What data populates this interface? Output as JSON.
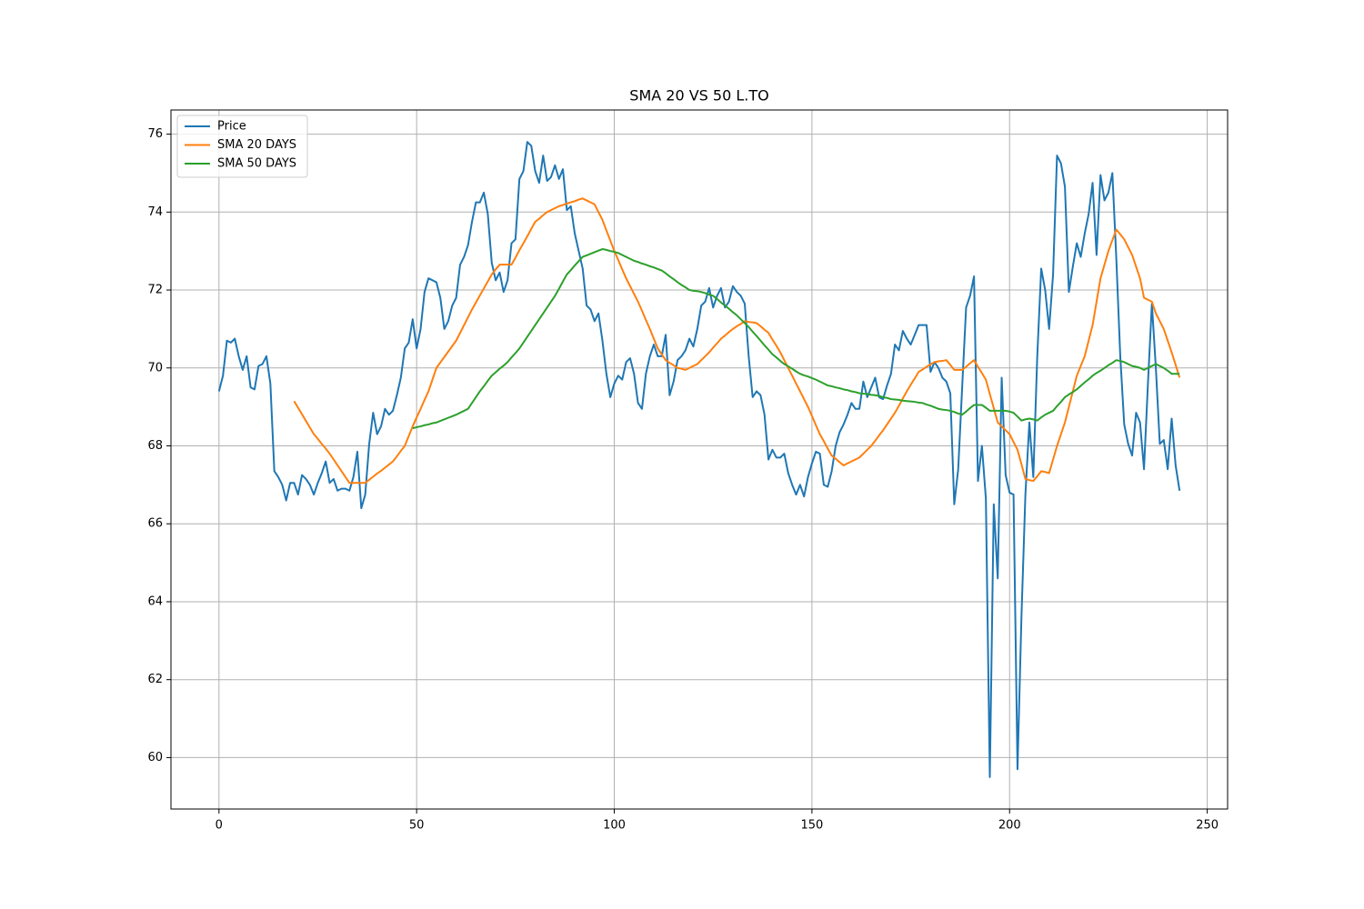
{
  "chart_data": {
    "type": "line",
    "title": "SMA 20 VS 50 L.TO",
    "x": [
      0,
      1,
      2,
      3,
      4,
      5,
      6,
      7,
      8,
      9,
      10,
      11,
      12,
      13,
      14,
      15,
      16,
      17,
      18,
      19,
      20,
      21,
      22,
      23,
      24,
      25,
      26,
      27,
      28,
      29,
      30,
      31,
      32,
      33,
      34,
      35,
      36,
      37,
      38,
      39,
      40,
      41,
      42,
      43,
      44,
      45,
      46,
      47,
      48,
      49,
      50,
      51,
      52,
      53,
      54,
      55,
      56,
      57,
      58,
      59,
      60,
      61,
      62,
      63,
      64,
      65,
      66,
      67,
      68,
      69,
      70,
      71,
      72,
      73,
      74,
      75,
      76,
      77,
      78,
      79,
      80,
      81,
      82,
      83,
      84,
      85,
      86,
      87,
      88,
      89,
      90,
      91,
      92,
      93,
      94,
      95,
      96,
      97,
      98,
      99,
      100,
      101,
      102,
      103,
      104,
      105,
      106,
      107,
      108,
      109,
      110,
      111,
      112,
      113,
      114,
      115,
      116,
      117,
      118,
      119,
      120,
      121,
      122,
      123,
      124,
      125,
      126,
      127,
      128,
      129,
      130,
      131,
      132,
      133,
      134,
      135,
      136,
      137,
      138,
      139,
      140,
      141,
      142,
      143,
      144,
      145,
      146,
      147,
      148,
      149,
      150,
      151,
      152,
      153,
      154,
      155,
      156,
      157,
      158,
      159,
      160,
      161,
      162,
      163,
      164,
      165,
      166,
      167,
      168,
      169,
      170,
      171,
      172,
      173,
      174,
      175,
      176,
      177,
      178,
      179,
      180,
      181,
      182,
      183,
      184,
      185,
      186,
      187,
      188,
      189,
      190,
      191,
      192,
      193,
      194,
      195,
      196,
      197,
      198,
      199,
      200,
      201,
      202,
      203,
      204,
      205,
      206,
      207,
      208,
      209,
      210,
      211,
      212,
      213,
      214,
      215,
      216,
      217,
      218,
      219,
      220,
      221,
      222,
      223,
      224,
      225,
      226,
      227,
      228,
      229,
      230,
      231,
      232,
      233,
      234,
      235,
      236,
      237,
      238,
      239,
      240,
      241,
      242,
      243
    ],
    "series": [
      {
        "name": "Price",
        "color": "#1f77b4",
        "values": [
          69.4,
          69.8,
          70.7,
          70.65,
          70.75,
          70.3,
          69.95,
          70.3,
          69.5,
          69.45,
          70.05,
          70.1,
          70.3,
          69.6,
          67.35,
          67.2,
          67.0,
          66.6,
          67.05,
          67.05,
          66.75,
          67.25,
          67.15,
          67.0,
          66.75,
          67.05,
          67.3,
          67.6,
          67.05,
          67.15,
          66.85,
          66.9,
          66.9,
          66.85,
          67.2,
          67.85,
          66.4,
          66.75,
          68.05,
          68.85,
          68.3,
          68.5,
          68.95,
          68.8,
          68.9,
          69.3,
          69.75,
          70.5,
          70.65,
          71.25,
          70.5,
          71.0,
          71.95,
          72.3,
          72.25,
          72.2,
          71.8,
          71.0,
          71.2,
          71.6,
          71.8,
          72.65,
          72.85,
          73.15,
          73.75,
          74.25,
          74.25,
          74.5,
          73.95,
          72.7,
          72.25,
          72.45,
          71.95,
          72.25,
          73.2,
          73.3,
          74.85,
          75.05,
          75.8,
          75.7,
          75.05,
          74.75,
          75.45,
          74.8,
          74.9,
          75.2,
          74.85,
          75.1,
          74.05,
          74.15,
          73.45,
          73.0,
          72.55,
          71.6,
          71.5,
          71.2,
          71.4,
          70.7,
          69.85,
          69.25,
          69.6,
          69.8,
          69.7,
          70.15,
          70.25,
          69.85,
          69.1,
          68.95,
          69.85,
          70.3,
          70.6,
          70.3,
          70.3,
          70.85,
          69.3,
          69.65,
          70.2,
          70.3,
          70.45,
          70.75,
          70.55,
          71.0,
          71.6,
          71.7,
          72.05,
          71.55,
          71.85,
          72.05,
          71.55,
          71.7,
          72.1,
          71.95,
          71.85,
          71.65,
          70.3,
          69.25,
          69.4,
          69.3,
          68.8,
          67.65,
          67.9,
          67.7,
          67.7,
          67.8,
          67.3,
          67.0,
          66.75,
          67.0,
          66.7,
          67.2,
          67.55,
          67.85,
          67.8,
          67.0,
          66.95,
          67.35,
          68.0,
          68.35,
          68.55,
          68.8,
          69.1,
          68.95,
          68.95,
          69.65,
          69.25,
          69.5,
          69.75,
          69.25,
          69.2,
          69.55,
          69.85,
          70.6,
          70.45,
          70.95,
          70.75,
          70.6,
          70.85,
          71.1,
          71.1,
          71.1,
          69.9,
          70.15,
          70.0,
          69.75,
          69.65,
          69.35,
          66.5,
          67.4,
          69.5,
          71.55,
          71.85,
          72.35,
          67.1,
          68.0,
          66.65,
          59.5,
          66.5,
          64.6,
          69.75,
          67.25,
          66.8,
          66.75,
          59.7,
          63.6,
          66.75,
          68.6,
          67.2,
          70.3,
          72.55,
          72.0,
          71.0,
          72.4,
          75.45,
          75.25,
          74.65,
          71.95,
          72.6,
          73.2,
          72.85,
          73.45,
          73.95,
          74.75,
          72.9,
          74.95,
          74.3,
          74.5,
          75.0,
          72.8,
          70.3,
          68.55,
          68.05,
          67.75,
          68.85,
          68.6,
          67.4,
          69.6,
          71.65,
          70.0,
          68.05,
          68.15,
          67.4,
          68.7,
          67.5,
          66.85
        ]
      },
      {
        "name": "SMA 20 DAYS",
        "color": "#ff7f0e",
        "values": [
          null,
          null,
          null,
          null,
          null,
          null,
          null,
          null,
          null,
          null,
          null,
          null,
          null,
          null,
          null,
          null,
          null,
          null,
          null,
          69.15,
          68.98,
          68.81,
          68.64,
          68.47,
          68.3,
          68.18,
          68.05,
          67.93,
          67.8,
          67.65,
          67.5,
          67.35,
          67.2,
          67.05,
          67.05,
          67.05,
          67.05,
          67.05,
          67.13,
          67.21,
          67.29,
          67.36,
          67.44,
          67.52,
          67.6,
          67.73,
          67.87,
          68.0,
          68.25,
          68.5,
          68.73,
          68.95,
          69.18,
          69.4,
          69.7,
          70.0,
          70.14,
          70.28,
          70.42,
          70.56,
          70.7,
          70.9,
          71.1,
          71.3,
          71.5,
          71.68,
          71.86,
          72.04,
          72.22,
          72.4,
          72.53,
          72.65,
          72.65,
          72.65,
          72.65,
          72.83,
          73.02,
          73.2,
          73.38,
          73.57,
          73.75,
          73.83,
          73.92,
          74.0,
          74.05,
          74.1,
          74.15,
          74.18,
          74.22,
          74.25,
          74.28,
          74.32,
          74.35,
          74.3,
          74.25,
          74.2,
          74.0,
          73.8,
          73.53,
          73.27,
          73.0,
          72.77,
          72.53,
          72.3,
          72.1,
          71.9,
          71.7,
          71.47,
          71.23,
          71.0,
          70.75,
          70.5,
          70.35,
          70.2,
          70.13,
          70.07,
          70.0,
          69.98,
          69.95,
          70.0,
          70.05,
          70.1,
          70.2,
          70.3,
          70.4,
          70.52,
          70.63,
          70.75,
          70.83,
          70.92,
          71.0,
          71.07,
          71.13,
          71.2,
          71.18,
          71.17,
          71.15,
          71.07,
          70.98,
          70.9,
          70.73,
          70.57,
          70.4,
          70.2,
          70.0,
          69.8,
          69.6,
          69.4,
          69.2,
          69.0,
          68.77,
          68.53,
          68.3,
          68.12,
          67.93,
          67.75,
          67.67,
          67.58,
          67.5,
          67.55,
          67.6,
          67.65,
          67.7,
          67.8,
          67.9,
          68.0,
          68.13,
          68.27,
          68.4,
          68.55,
          68.7,
          68.85,
          69.03,
          69.22,
          69.4,
          69.57,
          69.73,
          69.9,
          69.96,
          70.03,
          70.09,
          70.15,
          70.17,
          70.18,
          70.2,
          70.08,
          69.95,
          69.95,
          69.95,
          70.03,
          70.12,
          70.2,
          70.03,
          69.87,
          69.7,
          69.33,
          68.97,
          68.6,
          68.5,
          68.4,
          68.3,
          68.1,
          67.9,
          67.53,
          67.15,
          67.12,
          67.1,
          67.22,
          67.35,
          67.33,
          67.3,
          67.65,
          68.0,
          68.3,
          68.6,
          69.0,
          69.4,
          69.8,
          70.05,
          70.3,
          70.7,
          71.1,
          71.7,
          72.3,
          72.65,
          73.0,
          73.28,
          73.55,
          73.43,
          73.3,
          73.1,
          72.9,
          72.6,
          72.3,
          71.8,
          71.75,
          71.7,
          71.4,
          71.2,
          71.0,
          70.7,
          70.4,
          70.08,
          69.75
        ]
      },
      {
        "name": "SMA 50 DAYS",
        "color": "#2ca02c",
        "values": [
          null,
          null,
          null,
          null,
          null,
          null,
          null,
          null,
          null,
          null,
          null,
          null,
          null,
          null,
          null,
          null,
          null,
          null,
          null,
          null,
          null,
          null,
          null,
          null,
          null,
          null,
          null,
          null,
          null,
          null,
          null,
          null,
          null,
          null,
          null,
          null,
          null,
          null,
          null,
          null,
          null,
          null,
          null,
          null,
          null,
          null,
          null,
          null,
          null,
          68.45,
          68.48,
          68.5,
          68.53,
          68.55,
          68.58,
          68.6,
          68.64,
          68.68,
          68.72,
          68.76,
          68.8,
          68.85,
          68.9,
          68.95,
          69.1,
          69.25,
          69.4,
          69.53,
          69.67,
          69.8,
          69.89,
          69.98,
          70.06,
          70.15,
          70.27,
          70.38,
          70.5,
          70.65,
          70.8,
          70.95,
          71.1,
          71.25,
          71.4,
          71.55,
          71.7,
          71.85,
          72.03,
          72.22,
          72.4,
          72.51,
          72.63,
          72.74,
          72.85,
          72.89,
          72.93,
          72.97,
          73.01,
          73.05,
          73.03,
          73.0,
          72.98,
          72.95,
          72.9,
          72.85,
          72.8,
          72.75,
          72.72,
          72.68,
          72.65,
          72.61,
          72.58,
          72.54,
          72.5,
          72.43,
          72.35,
          72.28,
          72.2,
          72.13,
          72.07,
          72.0,
          71.98,
          71.97,
          71.95,
          71.92,
          71.88,
          71.85,
          71.77,
          71.68,
          71.6,
          71.52,
          71.43,
          71.35,
          71.25,
          71.15,
          71.05,
          70.93,
          70.82,
          70.7,
          70.58,
          70.47,
          70.35,
          70.27,
          70.18,
          70.1,
          70.04,
          69.98,
          69.91,
          69.85,
          69.81,
          69.78,
          69.74,
          69.7,
          69.65,
          69.6,
          69.55,
          69.53,
          69.5,
          69.48,
          69.45,
          69.43,
          69.4,
          69.38,
          69.35,
          69.34,
          69.33,
          69.31,
          69.3,
          69.28,
          69.25,
          69.23,
          69.2,
          69.19,
          69.18,
          69.16,
          69.15,
          69.14,
          69.13,
          69.11,
          69.1,
          69.06,
          69.03,
          68.99,
          68.95,
          68.93,
          68.92,
          68.9,
          68.87,
          68.83,
          68.8,
          68.88,
          68.97,
          69.05,
          69.05,
          69.05,
          68.98,
          68.9,
          68.9,
          68.9,
          68.9,
          68.9,
          68.88,
          68.85,
          68.75,
          68.65,
          68.68,
          68.7,
          68.68,
          68.65,
          68.73,
          68.8,
          68.85,
          68.9,
          69.02,
          69.13,
          69.25,
          69.32,
          69.38,
          69.45,
          69.54,
          69.63,
          69.71,
          69.8,
          69.87,
          69.93,
          70.0,
          70.07,
          70.13,
          70.2,
          70.18,
          70.15,
          70.1,
          70.05,
          70.03,
          70.0,
          69.95,
          70.0,
          70.05,
          70.1,
          70.05,
          70.0,
          69.93,
          69.85,
          69.85,
          69.85
        ]
      }
    ],
    "xlim": [
      -12.15,
      255.15
    ],
    "xticks": [
      0,
      50,
      100,
      150,
      200,
      250
    ],
    "ylim": [
      58.68,
      76.62
    ],
    "yticks": [
      60,
      62,
      64,
      66,
      68,
      70,
      72,
      74,
      76
    ],
    "grid": true,
    "legend": "upper-left"
  }
}
